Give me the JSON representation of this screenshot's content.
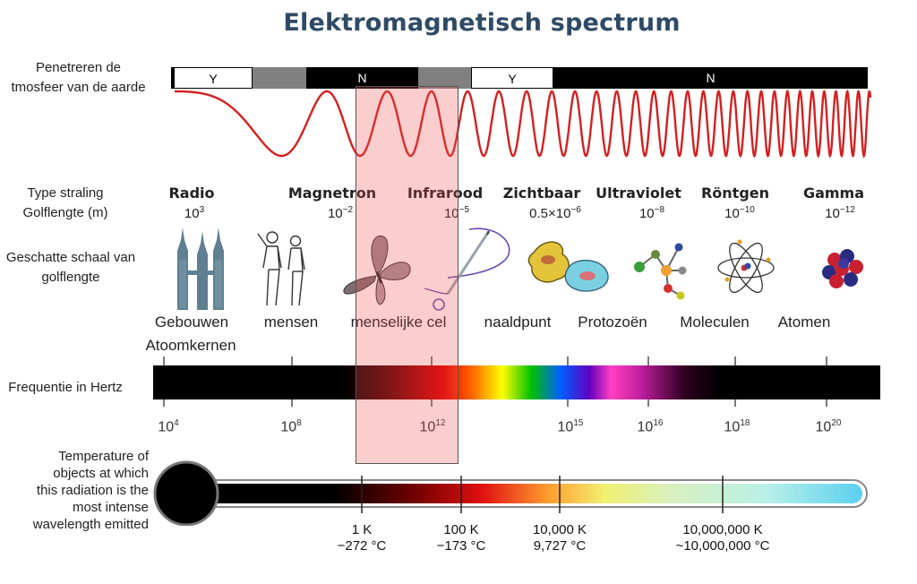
{
  "title": "Elektromagnetisch spectrum",
  "left_labels": {
    "atmosphere": [
      "Penetreren de",
      "tmosfeer van de aarde"
    ],
    "radiation_type": [
      "Type straling",
      "Golflengte (m)"
    ],
    "scale": [
      "Geschatte schaal van",
      "golflengte"
    ],
    "frequency": "Frequentie in Hertz",
    "temperature": [
      "Temperature of",
      "objects at which",
      "this radiation is the",
      "most intense",
      "wavelength emitted"
    ]
  },
  "atmosphere_bar": [
    {
      "label": "Y",
      "fill": "#ffffff"
    },
    {
      "label": "",
      "fill": "#808080"
    },
    {
      "label": "N",
      "fill": "#000000"
    },
    {
      "label": "",
      "fill": "#808080"
    },
    {
      "label": "Y",
      "fill": "#ffffff"
    },
    {
      "label": "N",
      "fill": "#000000"
    }
  ],
  "radiation_types": [
    {
      "name": "Radio",
      "wl_base": "10",
      "wl_exp": "3"
    },
    {
      "name": "Magnetron",
      "wl_base": "10",
      "wl_exp": "−2"
    },
    {
      "name": "Infrarood",
      "wl_base": "10",
      "wl_exp": "−5"
    },
    {
      "name": "Zichtbaar",
      "wl_base": "0.5×10",
      "wl_exp": "−6"
    },
    {
      "name": "Ultraviolet",
      "wl_base": "10",
      "wl_exp": "−8"
    },
    {
      "name": "Röntgen",
      "wl_base": "10",
      "wl_exp": "−10"
    },
    {
      "name": "Gamma",
      "wl_base": "10",
      "wl_exp": "−12"
    }
  ],
  "scale_labels": [
    "Gebouwen",
    "Atoomkernen",
    "mensen",
    "menselijke cel",
    "naaldpunt",
    "Protozoën",
    "Moleculen",
    "Atomen"
  ],
  "frequency_ticks": [
    {
      "base": "10",
      "exp": "4"
    },
    {
      "base": "10",
      "exp": "8"
    },
    {
      "base": "10",
      "exp": "12"
    },
    {
      "base": "10",
      "exp": "15"
    },
    {
      "base": "10",
      "exp": "16"
    },
    {
      "base": "10",
      "exp": "18"
    },
    {
      "base": "10",
      "exp": "20"
    }
  ],
  "temperatures": [
    {
      "kelvin": "1 K",
      "celsius": "−272 °C"
    },
    {
      "kelvin": "100 K",
      "celsius": "−173 °C"
    },
    {
      "kelvin": "10,000 K",
      "celsius": "9,727 °C"
    },
    {
      "kelvin": "10,000,000 K",
      "celsius": "~10,000,000 °C"
    }
  ],
  "icons": [
    "skyscraper-icon",
    "humans-icon",
    "butterfly-icon",
    "needle-icon",
    "protozoa-icon",
    "molecule-icon",
    "atom-icon",
    "nucleus-icon"
  ],
  "colors": {
    "title": "#2e4a66",
    "wave": "#d42020",
    "highlight": "#f05050"
  }
}
